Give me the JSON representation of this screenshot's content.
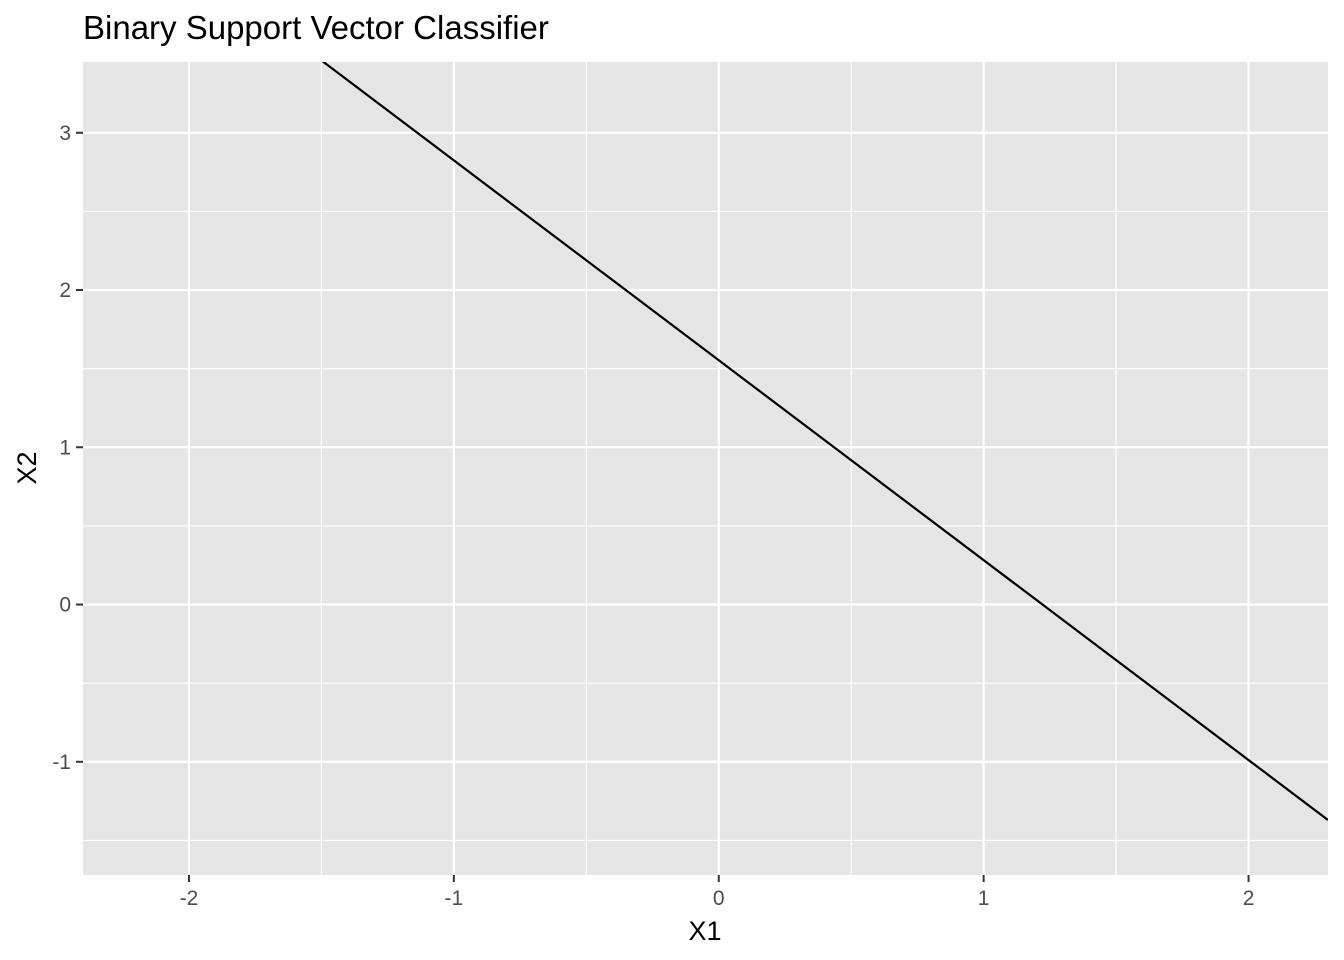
{
  "chart_data": {
    "type": "line",
    "title": "Binary Support Vector Classifier",
    "xlabel": "X1",
    "ylabel": "X2",
    "xlim": [
      -2.4,
      2.3
    ],
    "ylim": [
      -1.72,
      3.45
    ],
    "x_ticks": [
      -2,
      -1,
      0,
      1,
      2
    ],
    "y_ticks": [
      -1,
      0,
      1,
      2,
      3
    ],
    "x_minor_ticks": [
      -1.5,
      -0.5,
      0.5,
      1.5
    ],
    "y_minor_ticks": [
      -1.5,
      -0.5,
      0.5,
      1.5,
      2.5
    ],
    "grid": true,
    "legend": "none",
    "series": [
      {
        "x": [
          -1.5,
          2.3
        ],
        "y": [
          3.46,
          -1.37
        ]
      }
    ],
    "colors": {
      "panel_background": "#e5e5e5",
      "grid": "#ffffff",
      "line": "#000000",
      "tick_text": "#4d4d4d",
      "axis_tick": "#333333"
    }
  }
}
